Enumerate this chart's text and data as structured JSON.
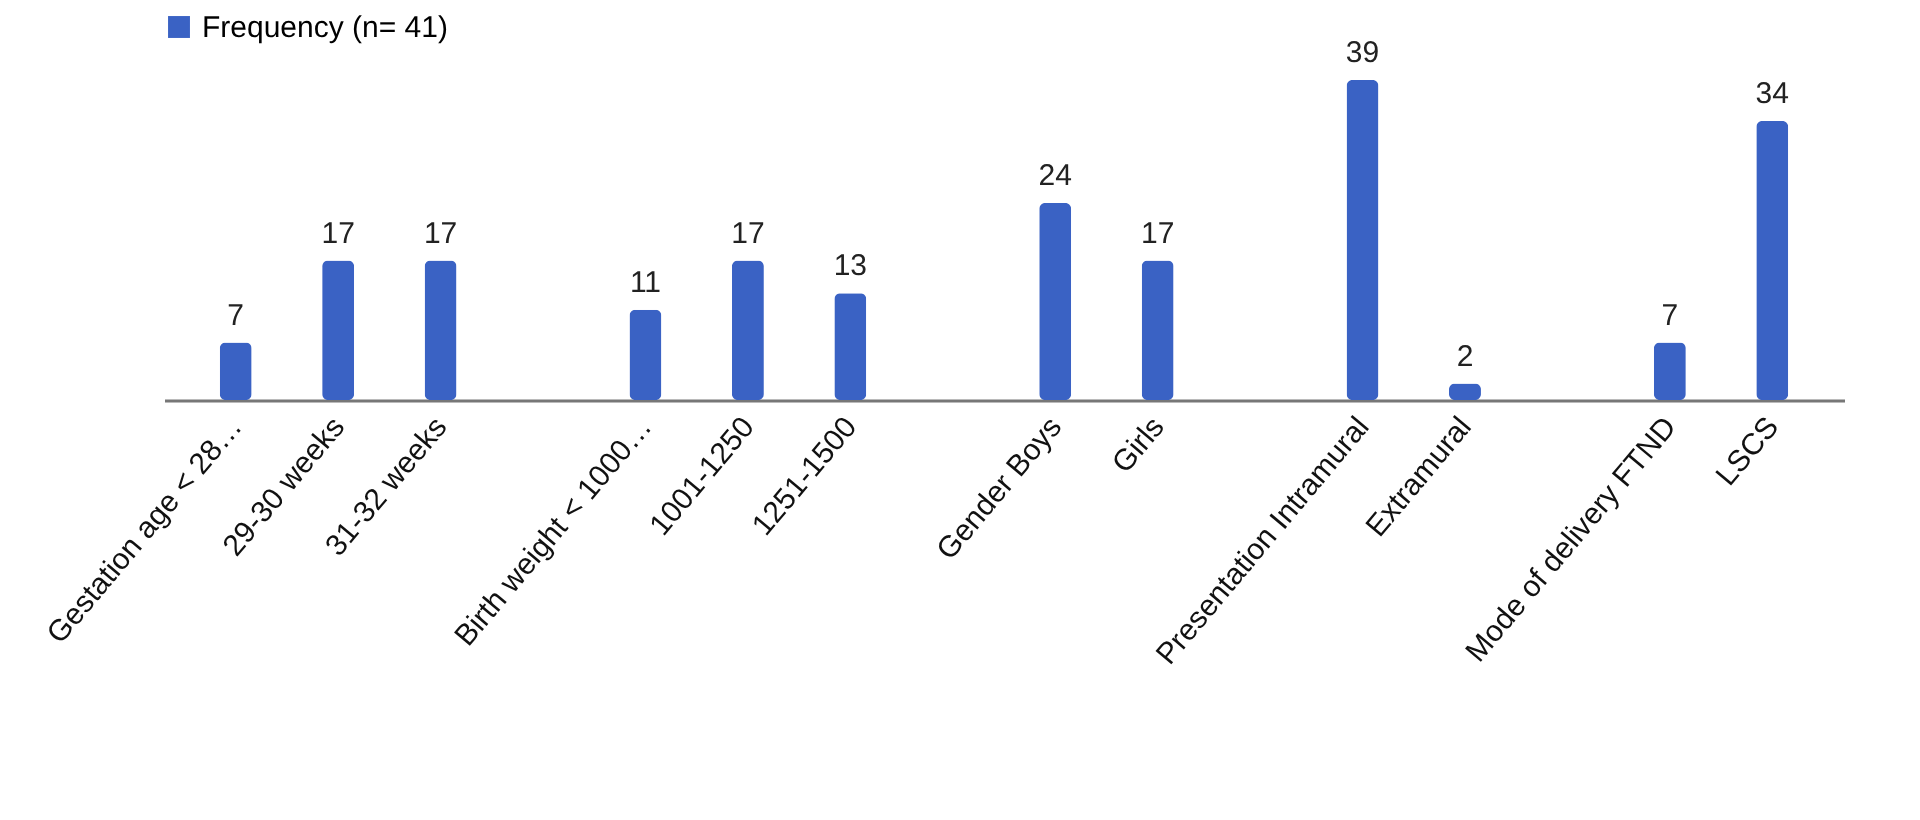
{
  "chart_data": {
    "type": "bar",
    "categories": [
      "Gestation age < 28…",
      "29-30 weeks",
      "31-32 weeks",
      null,
      "Birth weight < 1000…",
      "1001-1250",
      "1251-1500",
      null,
      "Gender  Boys",
      "Girls",
      null,
      "Presentation Intramural",
      "Extramural",
      null,
      "Mode of delivery  FTND",
      "LSCS"
    ],
    "series": [
      {
        "name": "Frequency (n= 41)",
        "color": "#3a62c4",
        "values": [
          7,
          17,
          17,
          null,
          11,
          17,
          13,
          null,
          24,
          17,
          null,
          39,
          2,
          null,
          7,
          34
        ]
      }
    ],
    "data_labels": true,
    "legend": "top",
    "grid": false
  }
}
